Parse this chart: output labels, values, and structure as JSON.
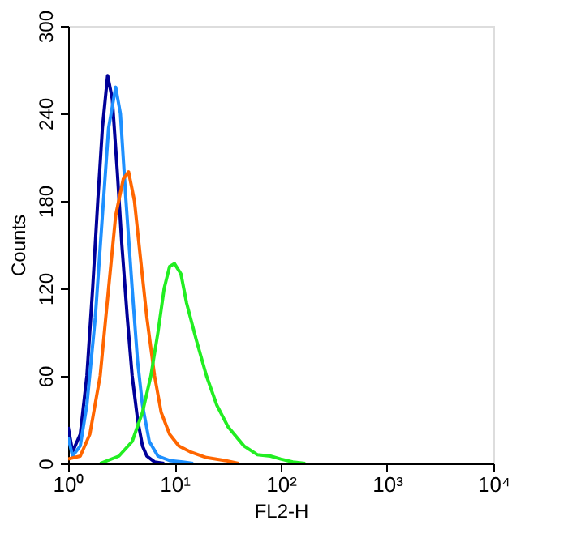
{
  "chart_data": {
    "type": "line",
    "xlabel": "FL2-H",
    "ylabel": "Counts",
    "log": "x",
    "grid": false,
    "legend": false,
    "marker": "none",
    "line_style": "solid",
    "xlim": [
      1,
      10000
    ],
    "ylim": [
      0,
      300
    ],
    "xticks": [
      {
        "value": 1,
        "label": "10⁰"
      },
      {
        "value": 10,
        "label": "10¹"
      },
      {
        "value": 100,
        "label": "10²"
      },
      {
        "value": 1000,
        "label": "10³"
      },
      {
        "value": 10000,
        "label": "10⁴"
      }
    ],
    "yticks": [
      0,
      60,
      120,
      180,
      240,
      300
    ],
    "series": [
      {
        "color": "#000099",
        "x": [
          1,
          1.1,
          1.3,
          1.5,
          1.7,
          1.9,
          2.1,
          2.35,
          2.6,
          2.9,
          3.2,
          3.6,
          4.0,
          4.5,
          5,
          5.5,
          6.5,
          8
        ],
        "values": [
          25,
          8,
          20,
          60,
          120,
          180,
          230,
          266,
          250,
          200,
          150,
          100,
          60,
          30,
          12,
          5,
          1,
          0
        ]
      },
      {
        "color": "#1e90ff",
        "x": [
          1,
          1.1,
          1.3,
          1.5,
          1.8,
          2.1,
          2.4,
          2.8,
          3.1,
          3.5,
          4,
          4.5,
          5,
          5.8,
          7,
          9,
          12,
          15
        ],
        "values": [
          18,
          5,
          12,
          40,
          100,
          170,
          230,
          258,
          240,
          180,
          120,
          70,
          40,
          15,
          5,
          2,
          1,
          0
        ]
      },
      {
        "color": "#ff6600",
        "x": [
          1,
          1.3,
          1.6,
          2,
          2.4,
          2.8,
          3.3,
          3.7,
          4.2,
          4.8,
          5.5,
          6.5,
          7.5,
          9,
          11,
          14,
          20,
          30,
          40
        ],
        "values": [
          3,
          5,
          20,
          60,
          120,
          170,
          195,
          200,
          180,
          140,
          100,
          60,
          35,
          20,
          12,
          8,
          4,
          2,
          0
        ]
      },
      {
        "color": "#22ee22",
        "x": [
          2,
          3,
          4,
          5,
          6,
          7,
          8,
          9,
          10,
          11.5,
          13,
          16,
          20,
          25,
          32,
          45,
          60,
          80,
          100,
          130,
          170
        ],
        "values": [
          0,
          5,
          15,
          35,
          60,
          90,
          120,
          135,
          137,
          130,
          110,
          85,
          60,
          40,
          25,
          12,
          6,
          5,
          3,
          1,
          0
        ]
      }
    ]
  }
}
